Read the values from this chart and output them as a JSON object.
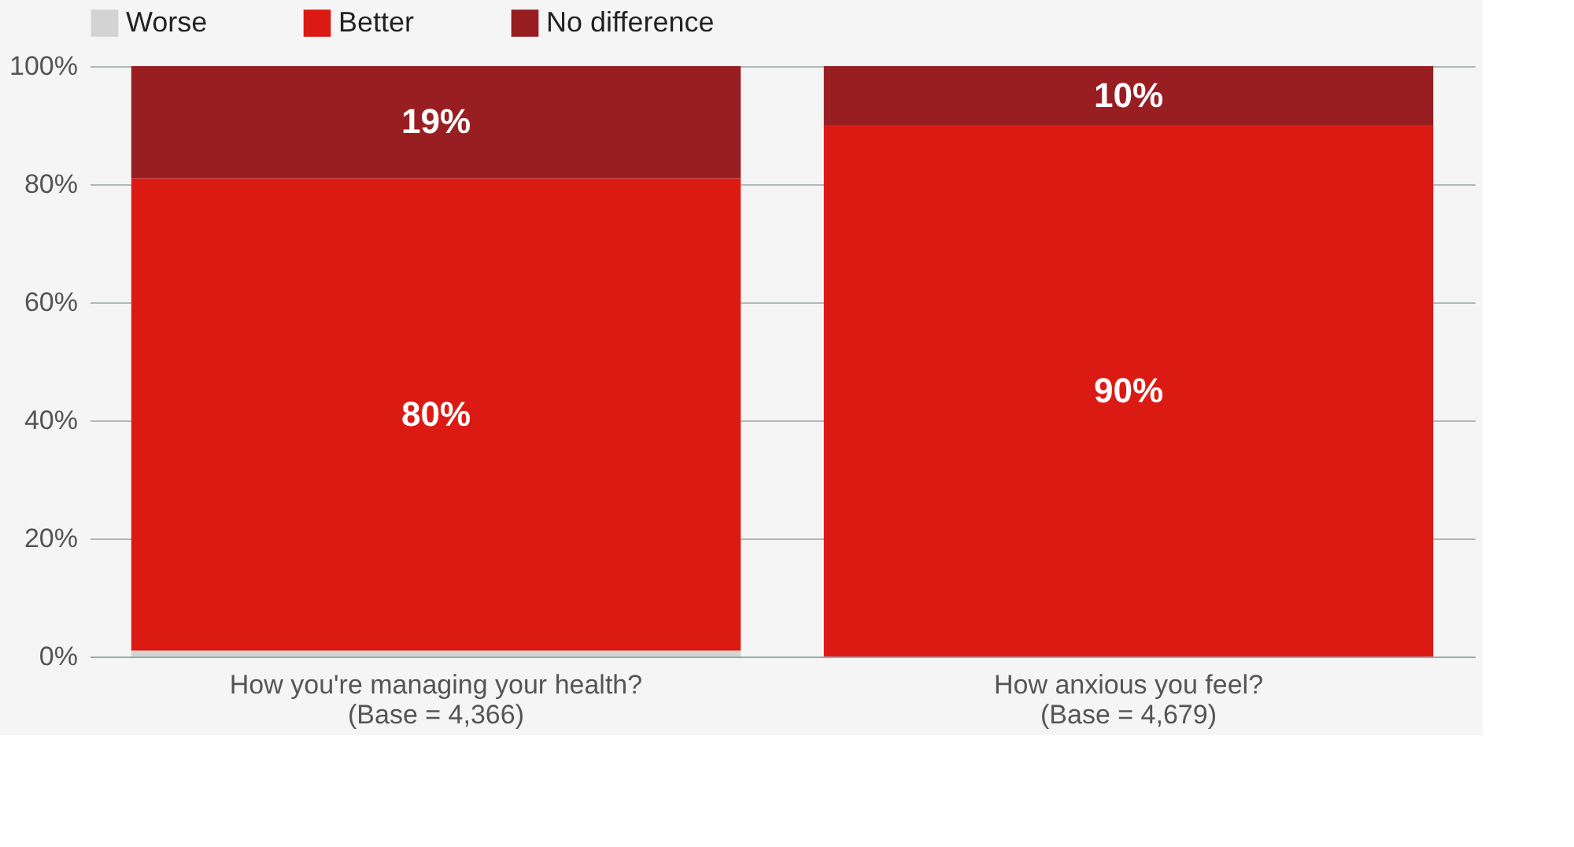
{
  "chart_data": {
    "type": "bar",
    "stacked": true,
    "categories": [
      "How you're managing your health?\n(Base = 4,366)",
      "How anxious you feel?\n(Base = 4,679)"
    ],
    "series": [
      {
        "name": "Worse",
        "color": "#d3d3d3",
        "values": [
          1,
          0
        ],
        "value_labels": [
          null,
          null
        ]
      },
      {
        "name": "Better",
        "color": "#dc1a14",
        "values": [
          80,
          90
        ],
        "value_labels": [
          "80%",
          "90%"
        ]
      },
      {
        "name": "No difference",
        "color": "#981e22",
        "values": [
          19,
          10
        ],
        "value_labels": [
          "19%",
          "10%"
        ]
      }
    ],
    "ylim": [
      0,
      100
    ],
    "yticks": [
      {
        "value": 0,
        "label": "0%"
      },
      {
        "value": 20,
        "label": "20%"
      },
      {
        "value": 40,
        "label": "40%"
      },
      {
        "value": 60,
        "label": "60%"
      },
      {
        "value": 80,
        "label": "80%"
      },
      {
        "value": 100,
        "label": "100%"
      }
    ],
    "grid": "y",
    "legend": "top"
  }
}
